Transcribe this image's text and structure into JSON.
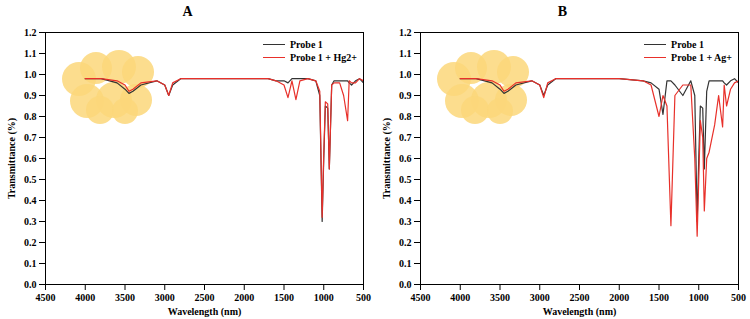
{
  "chart_data": [
    {
      "type": "line",
      "title": "A",
      "x_label": "Wavelength (nm)",
      "y_label": "Transmittance (%)",
      "x": [
        4000,
        3800,
        3600,
        3500,
        3450,
        3400,
        3300,
        3100,
        3000,
        2950,
        2900,
        2800,
        2500,
        2000,
        1700,
        1600,
        1500,
        1450,
        1400,
        1350,
        1300,
        1200,
        1100,
        1050,
        1020,
        1000,
        980,
        950,
        930,
        900,
        870,
        800,
        750,
        700,
        680,
        650,
        600,
        550,
        500
      ],
      "series": [
        {
          "name": "Probe 1",
          "color": "#333333",
          "values": [
            0.98,
            0.98,
            0.96,
            0.93,
            0.91,
            0.92,
            0.95,
            0.97,
            0.95,
            0.9,
            0.95,
            0.98,
            0.98,
            0.98,
            0.98,
            0.97,
            0.97,
            0.96,
            0.98,
            0.98,
            0.98,
            0.98,
            0.97,
            0.9,
            0.3,
            0.6,
            0.85,
            0.84,
            0.55,
            0.95,
            0.97,
            0.97,
            0.97,
            0.97,
            0.96,
            0.95,
            0.97,
            0.98,
            0.96
          ]
        },
        {
          "name": "Probe 1 + Hg2+",
          "color": "#e8302a",
          "values": [
            0.98,
            0.98,
            0.97,
            0.95,
            0.92,
            0.93,
            0.96,
            0.97,
            0.95,
            0.9,
            0.96,
            0.98,
            0.98,
            0.98,
            0.98,
            0.97,
            0.95,
            0.89,
            0.97,
            0.88,
            0.97,
            0.98,
            0.97,
            0.92,
            0.32,
            0.62,
            0.87,
            0.86,
            0.55,
            0.95,
            0.96,
            0.96,
            0.9,
            0.78,
            0.97,
            0.96,
            0.96,
            0.98,
            0.97
          ]
        }
      ],
      "xlim": [
        4500,
        500
      ],
      "xticks": [
        4500,
        4000,
        3500,
        3000,
        2500,
        2000,
        1500,
        1000,
        500
      ],
      "ylim": [
        0,
        1.2
      ],
      "yticks": [
        {
          "value": 0,
          "label": "0.0"
        },
        0.1,
        0.2,
        0.3,
        0.4,
        0.5,
        0.6,
        0.7,
        0.8,
        0.9,
        {
          "value": 1,
          "label": "1.0"
        },
        1.1,
        1.2
      ],
      "legend": "top-right",
      "grid": false
    },
    {
      "type": "line",
      "title": "B",
      "x_label": "Wavelength (nm)",
      "y_label": "Transmittance (%)",
      "x": [
        4000,
        3800,
        3600,
        3500,
        3450,
        3400,
        3300,
        3100,
        3000,
        2950,
        2900,
        2800,
        2500,
        2000,
        1700,
        1600,
        1500,
        1450,
        1400,
        1350,
        1300,
        1200,
        1100,
        1050,
        1020,
        1000,
        980,
        950,
        930,
        900,
        870,
        800,
        750,
        700,
        680,
        650,
        600,
        550,
        500
      ],
      "series": [
        {
          "name": "Probe 1",
          "color": "#333333",
          "values": [
            0.98,
            0.98,
            0.96,
            0.93,
            0.91,
            0.92,
            0.95,
            0.97,
            0.95,
            0.9,
            0.95,
            0.98,
            0.98,
            0.98,
            0.97,
            0.96,
            0.93,
            0.81,
            0.97,
            0.97,
            0.95,
            0.9,
            0.97,
            0.9,
            0.3,
            0.6,
            0.85,
            0.84,
            0.55,
            0.92,
            0.97,
            0.97,
            0.97,
            0.97,
            0.96,
            0.95,
            0.97,
            0.98,
            0.96
          ]
        },
        {
          "name": "Probe 1 + Ag+",
          "color": "#e8302a",
          "values": [
            0.98,
            0.98,
            0.97,
            0.95,
            0.92,
            0.93,
            0.96,
            0.97,
            0.95,
            0.89,
            0.96,
            0.98,
            0.98,
            0.98,
            0.97,
            0.95,
            0.8,
            0.9,
            0.85,
            0.28,
            0.9,
            0.95,
            0.95,
            0.6,
            0.23,
            0.5,
            0.78,
            0.7,
            0.35,
            0.6,
            0.63,
            0.76,
            0.9,
            0.75,
            0.95,
            0.85,
            0.93,
            0.96,
            0.97
          ]
        }
      ],
      "xlim": [
        4500,
        500
      ],
      "xticks": [
        4500,
        4000,
        3500,
        3000,
        2500,
        2000,
        1500,
        1000,
        500
      ],
      "ylim": [
        0,
        1.2
      ],
      "yticks": [
        {
          "value": 0,
          "label": "0.0"
        },
        0.1,
        0.2,
        0.3,
        0.4,
        0.5,
        0.6,
        0.7,
        0.8,
        0.9,
        {
          "value": 1,
          "label": "1.0"
        },
        1.1,
        1.2
      ],
      "legend": "top-right",
      "grid": false
    }
  ]
}
